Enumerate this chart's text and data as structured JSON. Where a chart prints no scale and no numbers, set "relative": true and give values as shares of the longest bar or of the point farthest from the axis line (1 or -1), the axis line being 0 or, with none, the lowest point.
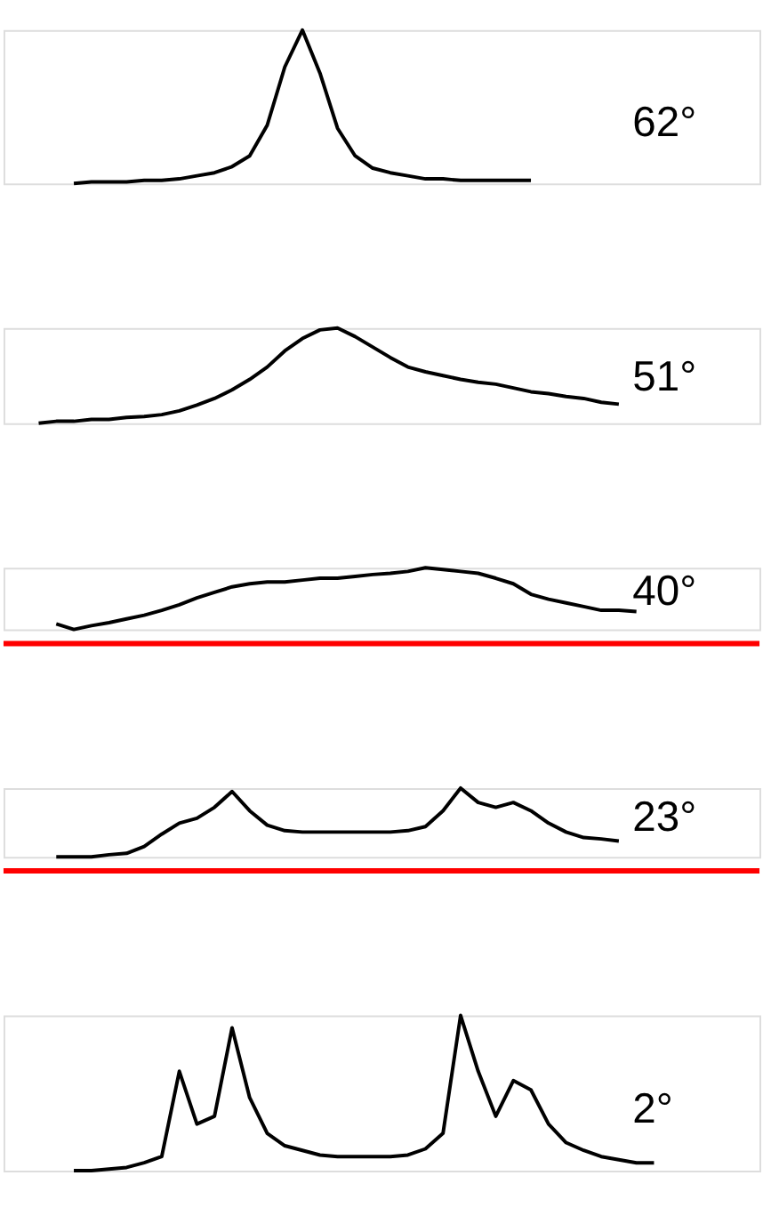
{
  "chart_data": [
    {
      "type": "line",
      "relative": true,
      "color": "#000000",
      "annotations": [
        "62°"
      ],
      "categories": [
        null,
        null,
        null,
        null,
        null,
        null,
        null,
        null,
        null,
        null,
        null,
        null,
        null,
        null,
        null,
        null,
        null,
        null,
        null,
        null,
        null,
        null,
        null,
        null,
        null,
        null,
        null,
        null,
        null,
        null,
        null,
        null,
        null,
        null,
        null,
        null,
        null,
        null,
        null,
        null,
        null,
        null,
        null,
        null
      ],
      "values": [
        null,
        null,
        null,
        null,
        0,
        0.01,
        0.01,
        0.01,
        0.02,
        0.02,
        0.03,
        0.05,
        0.07,
        0.11,
        0.18,
        0.38,
        0.76,
        1,
        0.72,
        0.36,
        0.18,
        0.1,
        0.07,
        0.05,
        0.03,
        0.03,
        0.02,
        0.02,
        0.02,
        0.02,
        0.02,
        null,
        null,
        null,
        null,
        null,
        null,
        null,
        null,
        null,
        null,
        null,
        null,
        null
      ]
    },
    {
      "type": "line",
      "relative": true,
      "color": "#000000",
      "annotations": [
        "51°"
      ],
      "categories": [
        null,
        null,
        null,
        null,
        null,
        null,
        null,
        null,
        null,
        null,
        null,
        null,
        null,
        null,
        null,
        null,
        null,
        null,
        null,
        null,
        null,
        null,
        null,
        null,
        null,
        null,
        null,
        null,
        null,
        null,
        null,
        null,
        null,
        null,
        null,
        null,
        null,
        null,
        null,
        null,
        null,
        null,
        null,
        null
      ],
      "values": [
        null,
        null,
        0,
        0.02,
        0.02,
        0.04,
        0.04,
        0.06,
        0.07,
        0.09,
        0.13,
        0.19,
        0.26,
        0.35,
        0.46,
        0.59,
        0.76,
        0.89,
        0.98,
        1,
        0.91,
        0.8,
        0.69,
        0.59,
        0.54,
        0.5,
        0.46,
        0.43,
        0.41,
        0.37,
        0.33,
        0.31,
        0.28,
        0.26,
        0.22,
        0.2,
        null,
        null,
        null,
        null,
        null,
        null,
        null,
        null
      ]
    },
    {
      "type": "line",
      "relative": true,
      "color": "#000000",
      "annotations": [
        "40°"
      ],
      "ref_lines": [
        {
          "axis": "y",
          "color": "#ff0000"
        }
      ],
      "categories": [
        null,
        null,
        null,
        null,
        null,
        null,
        null,
        null,
        null,
        null,
        null,
        null,
        null,
        null,
        null,
        null,
        null,
        null,
        null,
        null,
        null,
        null,
        null,
        null,
        null,
        null,
        null,
        null,
        null,
        null,
        null,
        null,
        null,
        null,
        null,
        null,
        null,
        null,
        null,
        null,
        null,
        null,
        null,
        null
      ],
      "values": [
        null,
        null,
        null,
        0.09,
        0,
        0.06,
        0.11,
        0.17,
        0.23,
        0.31,
        0.4,
        0.51,
        0.6,
        0.69,
        0.74,
        0.77,
        0.77,
        0.8,
        0.83,
        0.83,
        0.86,
        0.89,
        0.91,
        0.94,
        1,
        0.97,
        0.94,
        0.91,
        0.83,
        0.74,
        0.57,
        0.49,
        0.43,
        0.37,
        0.31,
        0.31,
        0.29,
        null,
        null,
        null,
        null,
        null,
        null,
        null
      ]
    },
    {
      "type": "line",
      "relative": true,
      "color": "#000000",
      "annotations": [
        "23°"
      ],
      "ref_lines": [
        {
          "axis": "y",
          "color": "#ff0000"
        }
      ],
      "categories": [
        null,
        null,
        null,
        null,
        null,
        null,
        null,
        null,
        null,
        null,
        null,
        null,
        null,
        null,
        null,
        null,
        null,
        null,
        null,
        null,
        null,
        null,
        null,
        null,
        null,
        null,
        null,
        null,
        null,
        null,
        null,
        null,
        null,
        null,
        null,
        null,
        null,
        null,
        null,
        null,
        null,
        null,
        null,
        null
      ],
      "values": [
        null,
        null,
        null,
        0,
        0,
        0,
        0.03,
        0.05,
        0.15,
        0.33,
        0.49,
        0.56,
        0.72,
        0.95,
        0.67,
        0.46,
        0.38,
        0.36,
        0.36,
        0.36,
        0.36,
        0.36,
        0.36,
        0.38,
        0.44,
        0.67,
        1,
        0.79,
        0.72,
        0.79,
        0.67,
        0.49,
        0.36,
        0.28,
        0.26,
        0.23,
        null,
        null,
        null,
        null,
        null,
        null,
        null,
        null
      ]
    },
    {
      "type": "line",
      "relative": true,
      "color": "#000000",
      "annotations": [
        "2°"
      ],
      "categories": [
        null,
        null,
        null,
        null,
        null,
        null,
        null,
        null,
        null,
        null,
        null,
        null,
        null,
        null,
        null,
        null,
        null,
        null,
        null,
        null,
        null,
        null,
        null,
        null,
        null,
        null,
        null,
        null,
        null,
        null,
        null,
        null,
        null,
        null,
        null,
        null,
        null,
        null,
        null,
        null,
        null,
        null,
        null,
        null
      ],
      "values": [
        null,
        null,
        null,
        null,
        0,
        0,
        0.01,
        0.02,
        0.05,
        0.09,
        0.64,
        0.3,
        0.35,
        0.92,
        0.47,
        0.24,
        0.16,
        0.13,
        0.1,
        0.09,
        0.09,
        0.09,
        0.09,
        0.1,
        0.14,
        0.24,
        1,
        0.64,
        0.35,
        0.58,
        0.52,
        0.3,
        0.18,
        0.13,
        0.09,
        0.07,
        0.05,
        0.05,
        null,
        null,
        null,
        null,
        null,
        null
      ]
    }
  ]
}
